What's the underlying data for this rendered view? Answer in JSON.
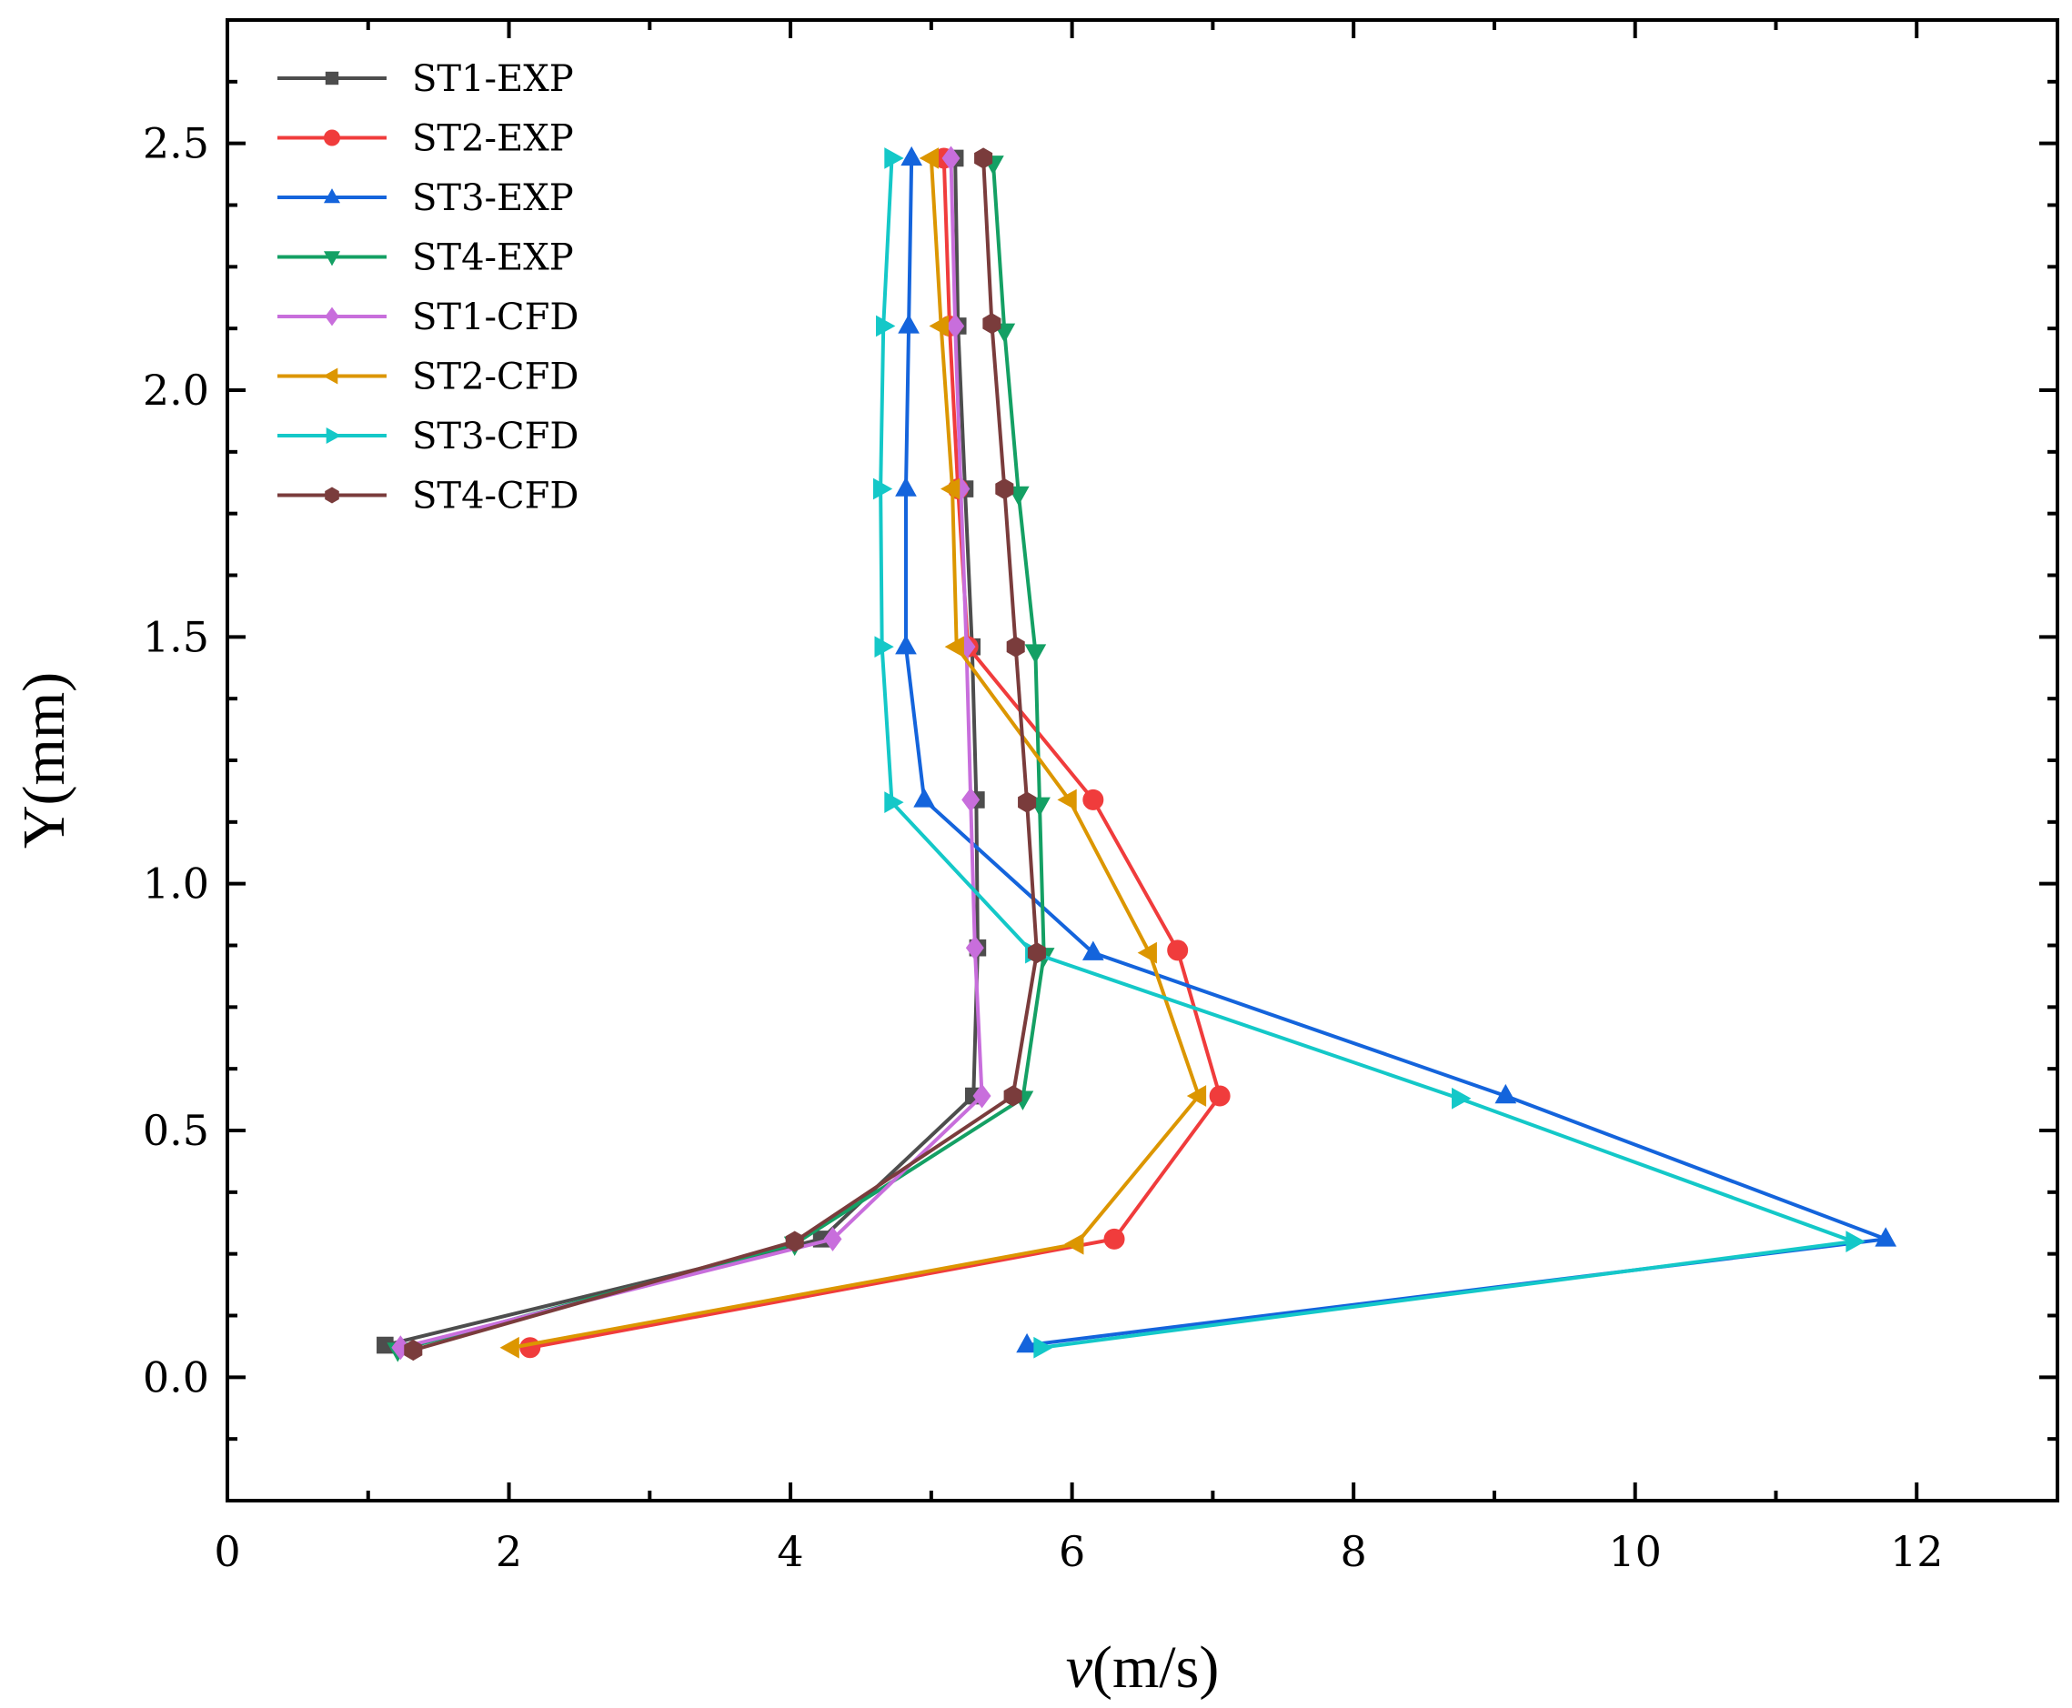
{
  "chart_data": {
    "type": "line",
    "title": "",
    "xlabel_var": "v",
    "xlabel_unit": "(m/s)",
    "ylabel": "Y(mm)",
    "xlim": [
      0,
      13
    ],
    "ylim": [
      -0.25,
      2.75
    ],
    "xticks": [
      0,
      2,
      4,
      6,
      8,
      10,
      12
    ],
    "xtick_labels": [
      "0",
      "2",
      "4",
      "6",
      "8",
      "10",
      "12"
    ],
    "yticks": [
      0.0,
      0.5,
      1.0,
      1.5,
      2.0,
      2.5
    ],
    "ytick_labels": [
      "0.0",
      "0.5",
      "1.0",
      "1.5",
      "2.0",
      "2.5"
    ],
    "grid": false,
    "legend_position": "top-left",
    "series": [
      {
        "name": "ST1-EXP",
        "color": "#4d4d4d",
        "marker": "square",
        "points": [
          [
            1.12,
            0.065
          ],
          [
            4.22,
            0.28
          ],
          [
            5.3,
            0.57
          ],
          [
            5.33,
            0.87
          ],
          [
            5.32,
            1.17
          ],
          [
            5.29,
            1.48
          ],
          [
            5.24,
            1.8
          ],
          [
            5.19,
            2.13
          ],
          [
            5.17,
            2.47
          ]
        ]
      },
      {
        "name": "ST2-EXP",
        "color": "#f03c3c",
        "marker": "circle",
        "points": [
          [
            2.15,
            0.06
          ],
          [
            6.3,
            0.28
          ],
          [
            7.05,
            0.57
          ],
          [
            6.75,
            0.865
          ],
          [
            6.15,
            1.17
          ],
          [
            5.26,
            1.48
          ],
          [
            5.19,
            1.8
          ],
          [
            5.13,
            2.13
          ],
          [
            5.09,
            2.47
          ]
        ]
      },
      {
        "name": "ST3-EXP",
        "color": "#1464dc",
        "marker": "triangle-up",
        "points": [
          [
            5.68,
            0.065
          ],
          [
            11.78,
            0.28
          ],
          [
            9.08,
            0.57
          ],
          [
            6.15,
            0.86
          ],
          [
            4.95,
            1.17
          ],
          [
            4.82,
            1.48
          ],
          [
            4.82,
            1.8
          ],
          [
            4.84,
            2.13
          ],
          [
            4.86,
            2.47
          ]
        ]
      },
      {
        "name": "ST4-EXP",
        "color": "#14a064",
        "marker": "triangle-down",
        "points": [
          [
            1.21,
            0.055
          ],
          [
            4.03,
            0.27
          ],
          [
            5.65,
            0.565
          ],
          [
            5.8,
            0.855
          ],
          [
            5.77,
            1.16
          ],
          [
            5.74,
            1.47
          ],
          [
            5.62,
            1.79
          ],
          [
            5.52,
            2.12
          ],
          [
            5.44,
            2.46
          ]
        ]
      },
      {
        "name": "ST1-CFD",
        "color": "#c86edc",
        "marker": "diamond",
        "points": [
          [
            1.23,
            0.06
          ],
          [
            4.3,
            0.28
          ],
          [
            5.36,
            0.57
          ],
          [
            5.31,
            0.87
          ],
          [
            5.28,
            1.17
          ],
          [
            5.25,
            1.48
          ],
          [
            5.21,
            1.8
          ],
          [
            5.17,
            2.13
          ],
          [
            5.14,
            2.47
          ]
        ]
      },
      {
        "name": "ST2-CFD",
        "color": "#dc9600",
        "marker": "triangle-left",
        "points": [
          [
            2.02,
            0.06
          ],
          [
            6.03,
            0.27
          ],
          [
            6.9,
            0.57
          ],
          [
            6.55,
            0.86
          ],
          [
            5.98,
            1.17
          ],
          [
            5.18,
            1.48
          ],
          [
            5.15,
            1.8
          ],
          [
            5.07,
            2.13
          ],
          [
            5.0,
            2.47
          ]
        ]
      },
      {
        "name": "ST3-CFD",
        "color": "#14c8c8",
        "marker": "triangle-right",
        "points": [
          [
            5.78,
            0.06
          ],
          [
            11.55,
            0.275
          ],
          [
            8.75,
            0.565
          ],
          [
            5.72,
            0.86
          ],
          [
            4.72,
            1.165
          ],
          [
            4.65,
            1.48
          ],
          [
            4.64,
            1.8
          ],
          [
            4.66,
            2.13
          ],
          [
            4.72,
            2.47
          ]
        ]
      },
      {
        "name": "ST4-CFD",
        "color": "#7a3c3c",
        "marker": "hexagon",
        "points": [
          [
            1.32,
            0.055
          ],
          [
            4.03,
            0.275
          ],
          [
            5.58,
            0.57
          ],
          [
            5.75,
            0.86
          ],
          [
            5.68,
            1.165
          ],
          [
            5.6,
            1.48
          ],
          [
            5.52,
            1.8
          ],
          [
            5.43,
            2.135
          ],
          [
            5.37,
            2.47
          ]
        ]
      }
    ]
  }
}
